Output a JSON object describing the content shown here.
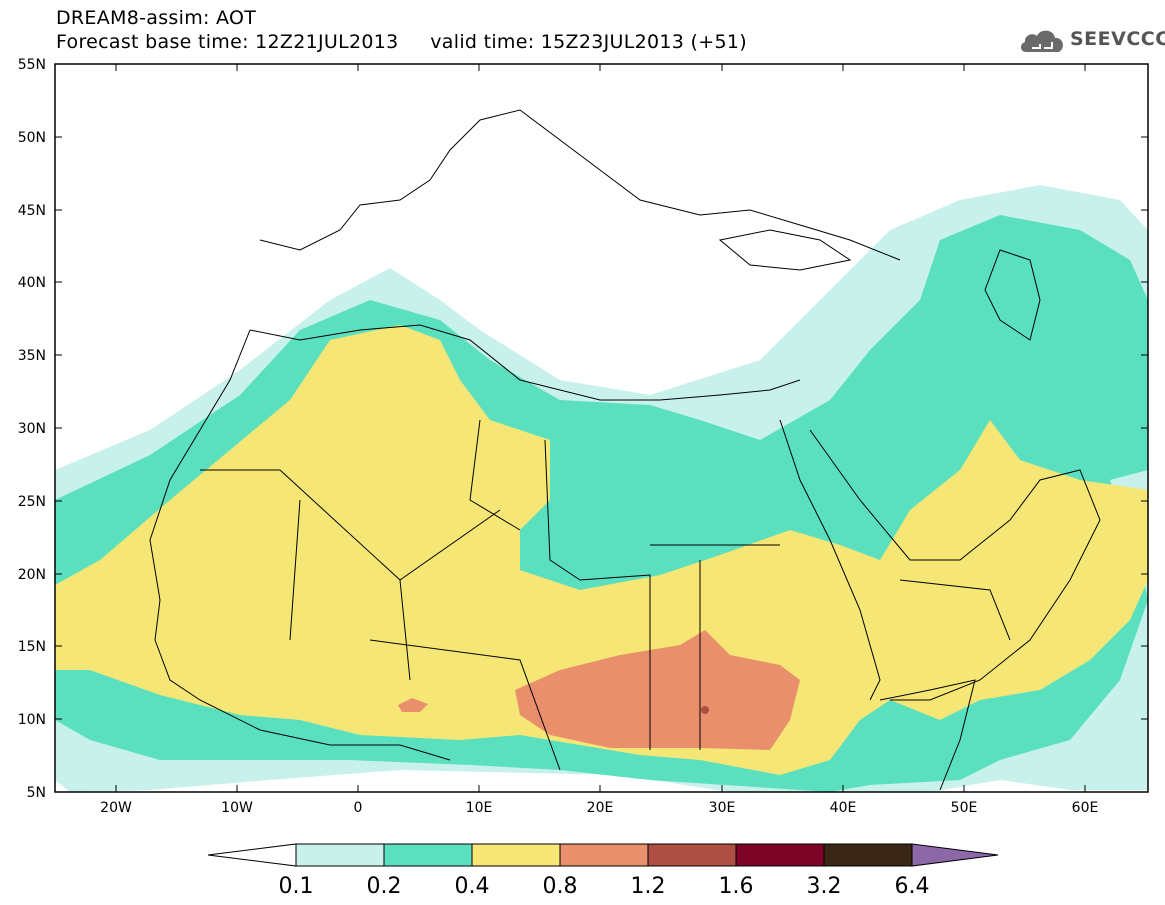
{
  "header": {
    "title": "DREAM8-assim: AOT",
    "subtitle": "Forecast base time: 12Z21JUL2013     valid time: 15Z23JUL2013 (+51)"
  },
  "logo": {
    "text": "SEEVCCC",
    "icon": "cloud-icon"
  },
  "map": {
    "lon_range": [
      -25,
      65
    ],
    "lat_range": [
      5,
      55
    ],
    "lon_ticks": [
      "20W",
      "10W",
      "0",
      "10E",
      "20E",
      "30E",
      "40E",
      "50E",
      "60E"
    ],
    "lat_ticks": [
      "5N",
      "10N",
      "15N",
      "20N",
      "25N",
      "30N",
      "35N",
      "40N",
      "45N",
      "50N",
      "55N"
    ]
  },
  "legend": {
    "labels": [
      "0.1",
      "0.2",
      "0.4",
      "0.8",
      "1.2",
      "1.6",
      "3.2",
      "6.4"
    ],
    "colors": [
      "#ffffff",
      "#c9f1ec",
      "#5be0bf",
      "#f6e675",
      "#e98f6c",
      "#ae4f43",
      "#7d0427",
      "#3a2615",
      "#8c68a8"
    ]
  }
}
